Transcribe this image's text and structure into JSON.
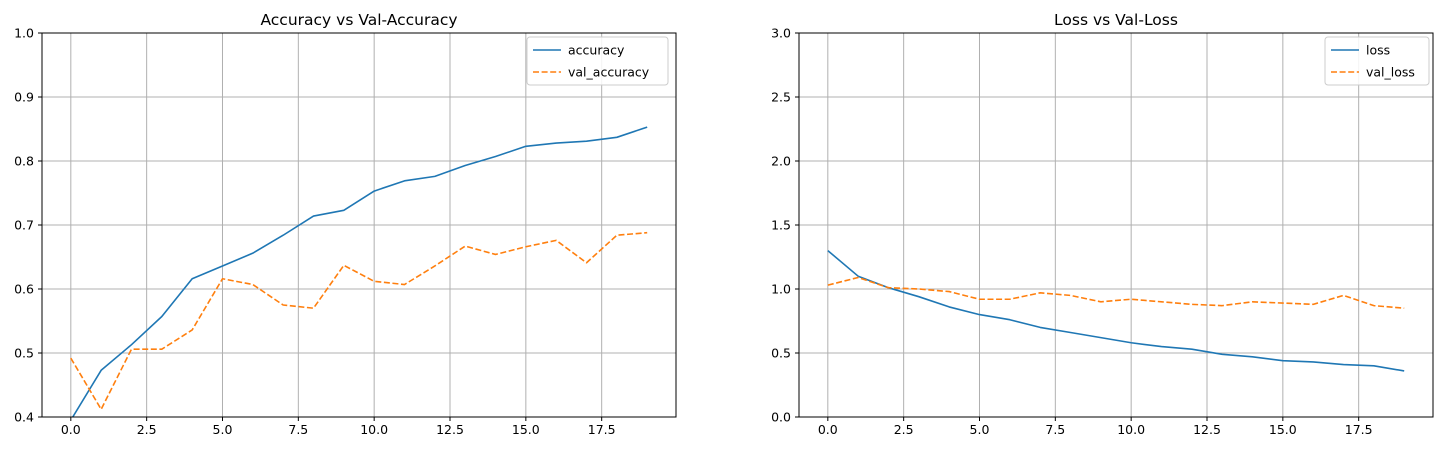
{
  "chart_data": [
    {
      "type": "line",
      "title": "Accuracy vs Val-Accuracy",
      "xlabel": "",
      "ylabel": "",
      "xlim": [
        -0.95,
        19.95
      ],
      "ylim": [
        0.4,
        1.0
      ],
      "grid": true,
      "legend_position": "top-right",
      "x": [
        0,
        1,
        2,
        3,
        4,
        5,
        6,
        7,
        8,
        9,
        10,
        11,
        12,
        13,
        14,
        15,
        16,
        17,
        18,
        19
      ],
      "x_ticks": [
        0.0,
        2.5,
        5.0,
        7.5,
        10.0,
        12.5,
        15.0,
        17.5
      ],
      "x_tick_labels": [
        "0.0",
        "2.5",
        "5.0",
        "7.5",
        "10.0",
        "12.5",
        "15.0",
        "17.5"
      ],
      "y_ticks": [
        0.4,
        0.5,
        0.6,
        0.7,
        0.8,
        0.9,
        1.0
      ],
      "y_tick_labels": [
        "0.4",
        "0.5",
        "0.6",
        "0.7",
        "0.8",
        "0.9",
        "1.0"
      ],
      "series": [
        {
          "name": "accuracy",
          "color": "#1f77b4",
          "style": "solid",
          "values": [
            0.395,
            0.473,
            0.513,
            0.557,
            0.616,
            0.636,
            0.656,
            0.684,
            0.714,
            0.723,
            0.753,
            0.769,
            0.776,
            0.793,
            0.807,
            0.823,
            0.828,
            0.831,
            0.837,
            0.853
          ]
        },
        {
          "name": "val_accuracy",
          "color": "#ff7f0e",
          "style": "dashed",
          "values": [
            0.492,
            0.412,
            0.506,
            0.506,
            0.536,
            0.616,
            0.607,
            0.575,
            0.57,
            0.637,
            0.612,
            0.607,
            0.636,
            0.667,
            0.654,
            0.666,
            0.676,
            0.641,
            0.684,
            0.688
          ]
        }
      ]
    },
    {
      "type": "line",
      "title": "Loss vs Val-Loss",
      "xlabel": "",
      "ylabel": "",
      "xlim": [
        -0.95,
        19.95
      ],
      "ylim": [
        0.0,
        3.0
      ],
      "grid": true,
      "legend_position": "top-right",
      "x": [
        0,
        1,
        2,
        3,
        4,
        5,
        6,
        7,
        8,
        9,
        10,
        11,
        12,
        13,
        14,
        15,
        16,
        17,
        18,
        19
      ],
      "x_ticks": [
        0.0,
        2.5,
        5.0,
        7.5,
        10.0,
        12.5,
        15.0,
        17.5
      ],
      "x_tick_labels": [
        "0.0",
        "2.5",
        "5.0",
        "7.5",
        "10.0",
        "12.5",
        "15.0",
        "17.5"
      ],
      "y_ticks": [
        0.0,
        0.5,
        1.0,
        1.5,
        2.0,
        2.5,
        3.0
      ],
      "y_tick_labels": [
        "0.0",
        "0.5",
        "1.0",
        "1.5",
        "2.0",
        "2.5",
        "3.0"
      ],
      "series": [
        {
          "name": "loss",
          "color": "#1f77b4",
          "style": "solid",
          "values": [
            1.3,
            1.1,
            1.01,
            0.94,
            0.86,
            0.8,
            0.76,
            0.7,
            0.66,
            0.62,
            0.58,
            0.55,
            0.53,
            0.49,
            0.47,
            0.44,
            0.43,
            0.41,
            0.4,
            0.36
          ]
        },
        {
          "name": "val_loss",
          "color": "#ff7f0e",
          "style": "dashed",
          "values": [
            1.03,
            1.09,
            1.01,
            1.0,
            0.98,
            0.92,
            0.92,
            0.97,
            0.95,
            0.9,
            0.92,
            0.9,
            0.88,
            0.87,
            0.9,
            0.89,
            0.88,
            0.95,
            0.87,
            0.85
          ]
        }
      ]
    }
  ]
}
